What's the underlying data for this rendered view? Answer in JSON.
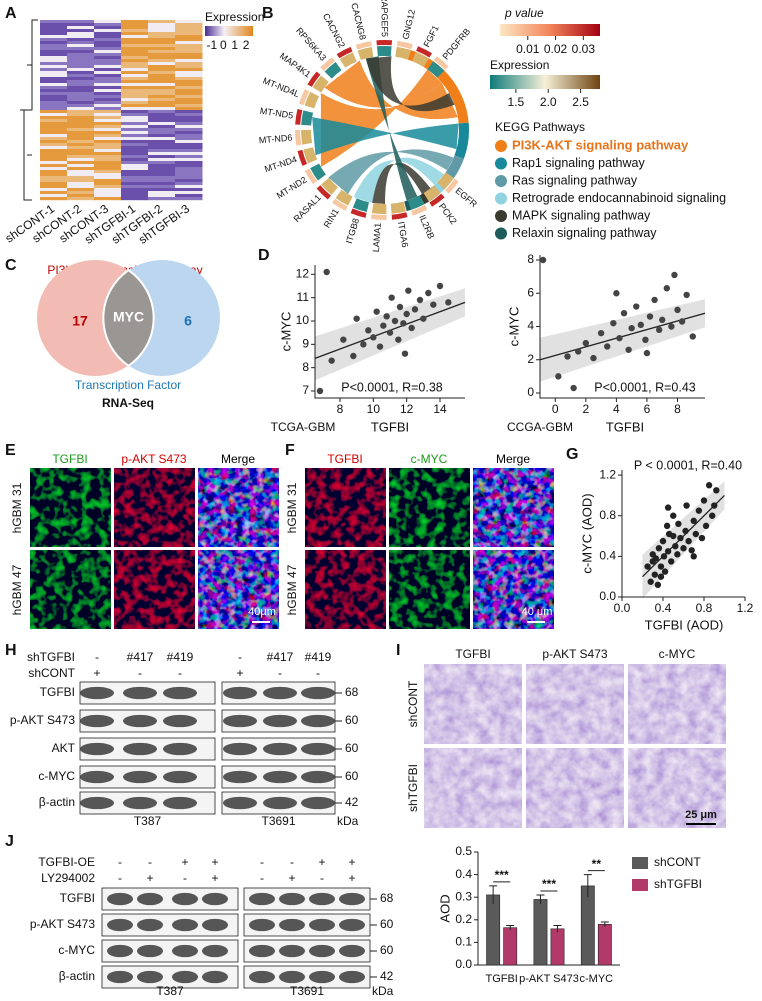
{
  "panel_labels": [
    "A",
    "B",
    "C",
    "D",
    "E",
    "F",
    "G",
    "H",
    "I",
    "J"
  ],
  "heatmap": {
    "legend_title": "Expression",
    "legend_lim": [
      -1.6,
      2.6
    ],
    "legend_ticks": [
      -1,
      0,
      1,
      2
    ],
    "columns": [
      "shCONT-1",
      "shCONT-2",
      "shCONT-3",
      "shTGFBI-1",
      "shTGFBI-2",
      "shTGFBI-3"
    ]
  },
  "chord": {
    "genes": [
      "PDGFRB",
      "FGF1",
      "GNG12",
      "RAPGEF5",
      "CACNG8",
      "CACNG2",
      "RPS6KA3",
      "MAP4K1",
      "MT-ND4L",
      "MT-ND5",
      "MT-ND6",
      "MT-ND4",
      "MT-ND2",
      "RASAL1",
      "RIN1",
      "ITGB8",
      "LAMA1",
      "ITGA6",
      "IL2RB",
      "PCK2",
      "EGFR"
    ],
    "pvalue_title": "p value",
    "pvalue_lim": [
      0,
      0.036
    ],
    "pvalue_ticks": [
      0.01,
      0.02,
      0.03
    ],
    "expression_title": "Expression",
    "expression_lim": [
      1.1,
      2.8
    ],
    "expression_ticks": [
      {
        "value": 1.5,
        "label": "1.5"
      },
      {
        "value": 2,
        "label": "2.0"
      },
      {
        "value": 2.5,
        "label": "2.5"
      }
    ],
    "pathways_title": "KEGG Pathways",
    "pathways": [
      {
        "name": "PI3K-AKT signaling pathway",
        "color": "#f07f1a"
      },
      {
        "name": "Rap1 signaling pathway",
        "color": "#17899a"
      },
      {
        "name": "Ras signaling pathway",
        "color": "#5f9aa6"
      },
      {
        "name": "Retrograde endocannabinoid signaling",
        "color": "#8fd3e0"
      },
      {
        "name": "MAPK signaling pathway",
        "color": "#3b3a30"
      },
      {
        "name": "Relaxin signaling pathway",
        "color": "#1d5c5a"
      }
    ]
  },
  "venn": {
    "title": "PI3K-AKT Signaling Pathway",
    "left_count": 17,
    "center": "MYC",
    "right_count": 6,
    "bottom_label": "Transcription Factor",
    "caption": "RNA-Seq"
  },
  "chart_data": [
    {
      "type": "scatter",
      "cohort": "TCGA-GBM",
      "xlabel": "TGFBI",
      "ylabel": "c-MYC",
      "annotation": "P<0.0001, R=0.38",
      "color": "#444444",
      "x": [
        6.8,
        7.5,
        8.2,
        8.8,
        9.0,
        9.4,
        9.7,
        10.0,
        10.2,
        10.4,
        10.6,
        10.8,
        11.0,
        11.1,
        11.3,
        11.5,
        11.6,
        11.8,
        12.0,
        12.1,
        12.3,
        12.5,
        12.8,
        13.0,
        13.3,
        13.6,
        14.0,
        14.5,
        7.2,
        11.9
      ],
      "values": [
        7.0,
        8.3,
        9.2,
        8.5,
        10.1,
        9.0,
        9.6,
        9.3,
        10.4,
        8.9,
        9.8,
        10.2,
        9.5,
        11.0,
        10.0,
        9.2,
        10.6,
        9.9,
        10.3,
        11.3,
        9.7,
        10.5,
        10.9,
        10.1,
        11.2,
        10.7,
        11.5,
        10.8,
        12.1,
        8.6
      ],
      "trend": {
        "x": [
          6.5,
          15.5
        ],
        "y": [
          8.4,
          10.8
        ]
      },
      "xlim": [
        6.5,
        15.5
      ],
      "xticks": [
        8,
        10,
        12,
        14
      ],
      "ylim": [
        6.7,
        12.4
      ],
      "yticks": [
        7,
        8,
        9,
        10,
        11,
        12
      ]
    },
    {
      "type": "scatter",
      "cohort": "CCGA-GBM",
      "xlabel": "TGFBI",
      "ylabel": "c-MYC",
      "annotation": "P<0.0001, R=0.43",
      "color": "#444444",
      "x": [
        -0.8,
        0.2,
        0.8,
        1.5,
        2.0,
        2.5,
        3.0,
        3.4,
        3.8,
        4.2,
        4.5,
        4.8,
        5.0,
        5.3,
        5.6,
        5.9,
        6.2,
        6.5,
        6.8,
        7.0,
        7.3,
        7.6,
        8.0,
        8.3,
        8.6,
        9.0,
        4.0,
        6.0,
        1.2,
        7.8
      ],
      "values": [
        8.0,
        1.0,
        2.2,
        2.5,
        3.0,
        2.1,
        3.6,
        2.8,
        4.2,
        3.3,
        4.8,
        2.6,
        3.9,
        5.2,
        4.1,
        3.2,
        4.6,
        5.6,
        3.8,
        4.4,
        6.3,
        4.0,
        5.0,
        4.3,
        5.9,
        3.4,
        6.0,
        2.4,
        0.3,
        7.1
      ],
      "trend": {
        "x": [
          -1,
          9.8
        ],
        "y": [
          2.0,
          4.8
        ]
      },
      "xlim": [
        -1,
        9.8
      ],
      "xticks": [
        0,
        2,
        4,
        6,
        8
      ],
      "ylim": [
        -0.3,
        8.3
      ],
      "yticks": [
        0,
        2,
        4,
        6,
        8
      ]
    },
    {
      "type": "scatter",
      "xlabel": "TGFBI (AOD)",
      "ylabel": "c-MYC  (AOD)",
      "annotation": "P < 0.0001, R=0.40",
      "color": "#222222",
      "x": [
        0.25,
        0.28,
        0.3,
        0.32,
        0.33,
        0.35,
        0.36,
        0.38,
        0.4,
        0.41,
        0.42,
        0.44,
        0.45,
        0.46,
        0.48,
        0.5,
        0.52,
        0.54,
        0.55,
        0.57,
        0.6,
        0.62,
        0.63,
        0.65,
        0.68,
        0.7,
        0.72,
        0.75,
        0.78,
        0.8,
        0.82,
        0.85,
        0.88,
        0.9,
        0.92,
        0.3,
        0.5,
        0.45,
        0.38,
        0.7
      ],
      "values": [
        0.3,
        0.15,
        0.42,
        0.22,
        0.38,
        0.12,
        0.48,
        0.3,
        0.55,
        0.4,
        0.25,
        0.7,
        0.45,
        0.62,
        0.35,
        0.8,
        0.5,
        0.42,
        0.72,
        0.58,
        0.48,
        0.65,
        0.9,
        0.55,
        0.46,
        0.75,
        0.62,
        0.85,
        0.58,
        0.95,
        0.7,
        1.1,
        0.8,
        0.9,
        1.05,
        0.35,
        0.6,
        0.88,
        0.2,
        0.4
      ],
      "trend": {
        "x": [
          0.2,
          1.0
        ],
        "y": [
          0.2,
          1.0
        ]
      },
      "xlim": [
        0,
        1.2
      ],
      "xticks": [
        {
          "value": 0,
          "label": "0.0"
        },
        {
          "value": 0.4,
          "label": "0.4"
        },
        {
          "value": 0.8,
          "label": "0.8"
        },
        {
          "value": 1.2,
          "label": "1.2"
        }
      ],
      "ylim": [
        0,
        1.25
      ],
      "yticks": [
        {
          "value": 0,
          "label": "0.0"
        },
        {
          "value": 0.4,
          "label": "0.4"
        },
        {
          "value": 0.8,
          "label": "0.8"
        },
        {
          "value": 1.2,
          "label": "1.2"
        }
      ]
    },
    {
      "type": "bar",
      "ylabel": "AOD",
      "categories": [
        "TGFBI",
        "p-AKT S473",
        "c-MYC"
      ],
      "series": [
        {
          "name": "shCONT",
          "color": "#5a5a5a",
          "values": [
            0.31,
            0.29,
            0.35
          ],
          "errors": [
            0.04,
            0.02,
            0.05
          ]
        },
        {
          "name": "shTGFBI",
          "color": "#b23a6a",
          "values": [
            0.165,
            0.16,
            0.18
          ],
          "errors": [
            0.01,
            0.015,
            0.01
          ]
        }
      ],
      "significance": [
        "***",
        "***",
        "**"
      ],
      "ylim": [
        0,
        0.5
      ],
      "yticks": [
        {
          "value": 0,
          "label": "0.0"
        },
        {
          "value": 0.1,
          "label": "0.1"
        },
        {
          "value": 0.2,
          "label": "0.2"
        },
        {
          "value": 0.3,
          "label": "0.3"
        },
        {
          "value": 0.4,
          "label": "0.4"
        },
        {
          "value": 0.5,
          "label": "0.5"
        }
      ]
    }
  ],
  "panel_E": {
    "columns": [
      "TGFBI",
      "p-AKT S473",
      "Merge"
    ],
    "column_colors": [
      "#1a9a1a",
      "#d40000",
      "#000000"
    ],
    "rows": [
      "hGBM 31",
      "hGBM 47"
    ],
    "scale": "40μm"
  },
  "panel_F": {
    "columns": [
      "TGFBI",
      "c-MYC",
      "Merge"
    ],
    "column_colors": [
      "#d40000",
      "#1a9a1a",
      "#000000"
    ],
    "rows": [
      "hGBM 31",
      "hGBM 47"
    ],
    "scale": "40 μm"
  },
  "panel_H": {
    "row_headers": [
      "shTGFBI",
      "shCONT"
    ],
    "lanes": [
      [
        "-",
        "#417",
        "#419",
        "-",
        "#417",
        "#419"
      ],
      [
        "+",
        "-",
        "-",
        "+",
        "-",
        "-"
      ]
    ],
    "proteins": [
      "TGFBI",
      "p-AKT S473",
      "AKT",
      "c-MYC",
      "β-actin"
    ],
    "kda": [
      68,
      60,
      60,
      60,
      42
    ],
    "cell_lines": [
      "T387",
      "T3691"
    ],
    "unit": "kDa"
  },
  "panel_I": {
    "columns": [
      "TGFBI",
      "p-AKT S473",
      "c-MYC"
    ],
    "rows": [
      "shCONT",
      "shTGFBI"
    ],
    "scale": "25 μm"
  },
  "panel_J": {
    "row_headers": [
      "TGFBI-OE",
      "LY294002"
    ],
    "lanes": [
      [
        "-",
        "-",
        "+",
        "+",
        "-",
        "-",
        "+",
        "+"
      ],
      [
        "-",
        "+",
        "-",
        "+",
        "-",
        "+",
        "-",
        "+"
      ]
    ],
    "proteins": [
      "TGFBI",
      "p-AKT S473",
      "c-MYC",
      "β-actin"
    ],
    "kda": [
      68,
      60,
      60,
      42
    ],
    "cell_lines": [
      "T387",
      "T3691"
    ],
    "unit": "kDa"
  }
}
